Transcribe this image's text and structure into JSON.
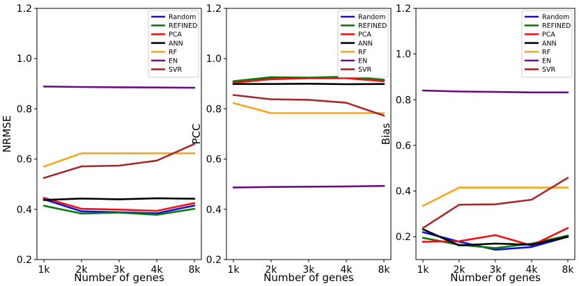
{
  "colors": {
    "Random": "#1010e0",
    "REFINED": "#0a7a0a",
    "PCA": "#ee1111",
    "ANN": "#000000",
    "RF": "#f8a51a",
    "EN": "#6a0c82",
    "SVR": "#a52a2a"
  },
  "chart_data": [
    {
      "type": "line",
      "title": "",
      "xlabel": "Number of genes",
      "ylabel": "NRMSE",
      "categories": [
        "1k",
        "2k",
        "3k",
        "4k",
        "8k"
      ],
      "ylim": [
        0.2,
        1.2
      ],
      "yticks": [
        "0.2",
        "0.4",
        "0.6",
        "0.8",
        "1.0",
        "1.2"
      ],
      "legend": "top-right",
      "series": [
        {
          "name": "Random",
          "values": [
            0.44,
            0.392,
            0.388,
            0.384,
            0.415
          ]
        },
        {
          "name": "REFINED",
          "values": [
            0.414,
            0.383,
            0.387,
            0.378,
            0.402
          ]
        },
        {
          "name": "PCA",
          "values": [
            0.446,
            0.402,
            0.399,
            0.394,
            0.425
          ]
        },
        {
          "name": "ANN",
          "values": [
            0.437,
            0.443,
            0.44,
            0.444,
            0.442
          ]
        },
        {
          "name": "RF",
          "values": [
            0.57,
            0.623,
            0.623,
            0.623,
            0.623
          ]
        },
        {
          "name": "EN",
          "values": [
            0.889,
            0.887,
            0.886,
            0.885,
            0.884
          ]
        },
        {
          "name": "SVR",
          "values": [
            0.525,
            0.571,
            0.574,
            0.594,
            0.66
          ]
        }
      ]
    },
    {
      "type": "line",
      "title": "",
      "xlabel": "Number of genes",
      "ylabel": "PCC",
      "categories": [
        "1k",
        "2k",
        "3k",
        "4k",
        "8k"
      ],
      "ylim": [
        0.2,
        1.2
      ],
      "yticks": [
        "0.2",
        "0.4",
        "0.6",
        "0.8",
        "1.0",
        "1.2"
      ],
      "legend": "top-right",
      "series": [
        {
          "name": "Random",
          "values": [
            0.905,
            0.922,
            0.923,
            0.925,
            0.914
          ]
        },
        {
          "name": "REFINED",
          "values": [
            0.91,
            0.926,
            0.924,
            0.928,
            0.916
          ]
        },
        {
          "name": "PCA",
          "values": [
            0.904,
            0.918,
            0.922,
            0.922,
            0.91
          ]
        },
        {
          "name": "ANN",
          "values": [
            0.899,
            0.899,
            0.9,
            0.898,
            0.899
          ]
        },
        {
          "name": "RF",
          "values": [
            0.823,
            0.783,
            0.783,
            0.783,
            0.783
          ]
        },
        {
          "name": "EN",
          "values": [
            0.487,
            0.489,
            0.49,
            0.491,
            0.493
          ]
        },
        {
          "name": "SVR",
          "values": [
            0.855,
            0.838,
            0.836,
            0.824,
            0.773
          ]
        }
      ]
    },
    {
      "type": "line",
      "title": "",
      "xlabel": "Number of genes",
      "ylabel": "Bias",
      "categories": [
        "1k",
        "2k",
        "3k",
        "4k",
        "8k"
      ],
      "ylim": [
        0.1,
        1.2
      ],
      "yticks": [
        "0.2",
        "0.4",
        "0.6",
        "0.8",
        "1.0",
        "1.2"
      ],
      "legend": "top-right",
      "series": [
        {
          "name": "Random",
          "values": [
            0.22,
            0.178,
            0.143,
            0.155,
            0.2
          ]
        },
        {
          "name": "REFINED",
          "values": [
            0.195,
            0.165,
            0.15,
            0.17,
            0.205
          ]
        },
        {
          "name": "PCA",
          "values": [
            0.178,
            0.18,
            0.207,
            0.162,
            0.238
          ]
        },
        {
          "name": "ANN",
          "values": [
            0.233,
            0.162,
            0.17,
            0.165,
            0.2
          ]
        },
        {
          "name": "RF",
          "values": [
            0.335,
            0.415,
            0.415,
            0.415,
            0.415
          ]
        },
        {
          "name": "EN",
          "values": [
            0.84,
            0.836,
            0.834,
            0.832,
            0.832
          ]
        },
        {
          "name": "SVR",
          "values": [
            0.238,
            0.34,
            0.342,
            0.362,
            0.458
          ]
        }
      ]
    }
  ]
}
